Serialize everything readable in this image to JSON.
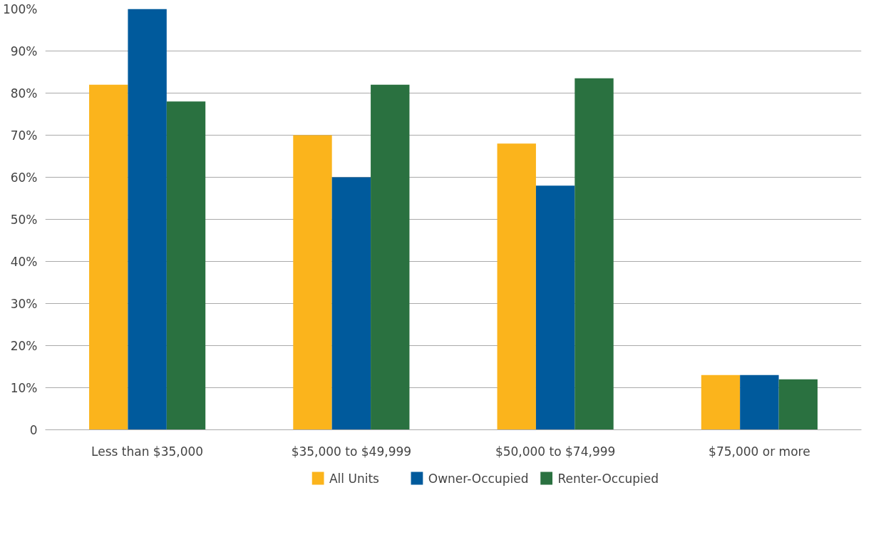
{
  "chart_data": {
    "type": "bar",
    "categories": [
      "Less than $35,000",
      "$35,000 to $49,999",
      "$50,000 to $74,999",
      "$75,000 or more"
    ],
    "series": [
      {
        "name": "All Units",
        "color": "#fbb41c",
        "values": [
          82,
          70,
          68,
          13
        ]
      },
      {
        "name": "Owner-Occupied",
        "color": "#005a9c",
        "values": [
          100,
          60,
          58,
          13
        ]
      },
      {
        "name": "Renter-Occupied",
        "color": "#2a7140",
        "values": [
          78,
          82,
          83.5,
          12
        ]
      }
    ],
    "ylim": [
      0,
      100
    ],
    "yticks": [
      {
        "value": 0,
        "label": "0"
      },
      {
        "value": 10,
        "label": "10%"
      },
      {
        "value": 20,
        "label": "20%"
      },
      {
        "value": 30,
        "label": "30%"
      },
      {
        "value": 40,
        "label": "40%"
      },
      {
        "value": 50,
        "label": "50%"
      },
      {
        "value": 60,
        "label": "60%"
      },
      {
        "value": 70,
        "label": "70%"
      },
      {
        "value": 80,
        "label": "80%"
      },
      {
        "value": 90,
        "label": "90%"
      },
      {
        "value": 100,
        "label": "100%"
      }
    ],
    "grid": "y",
    "legend": "bottom"
  }
}
